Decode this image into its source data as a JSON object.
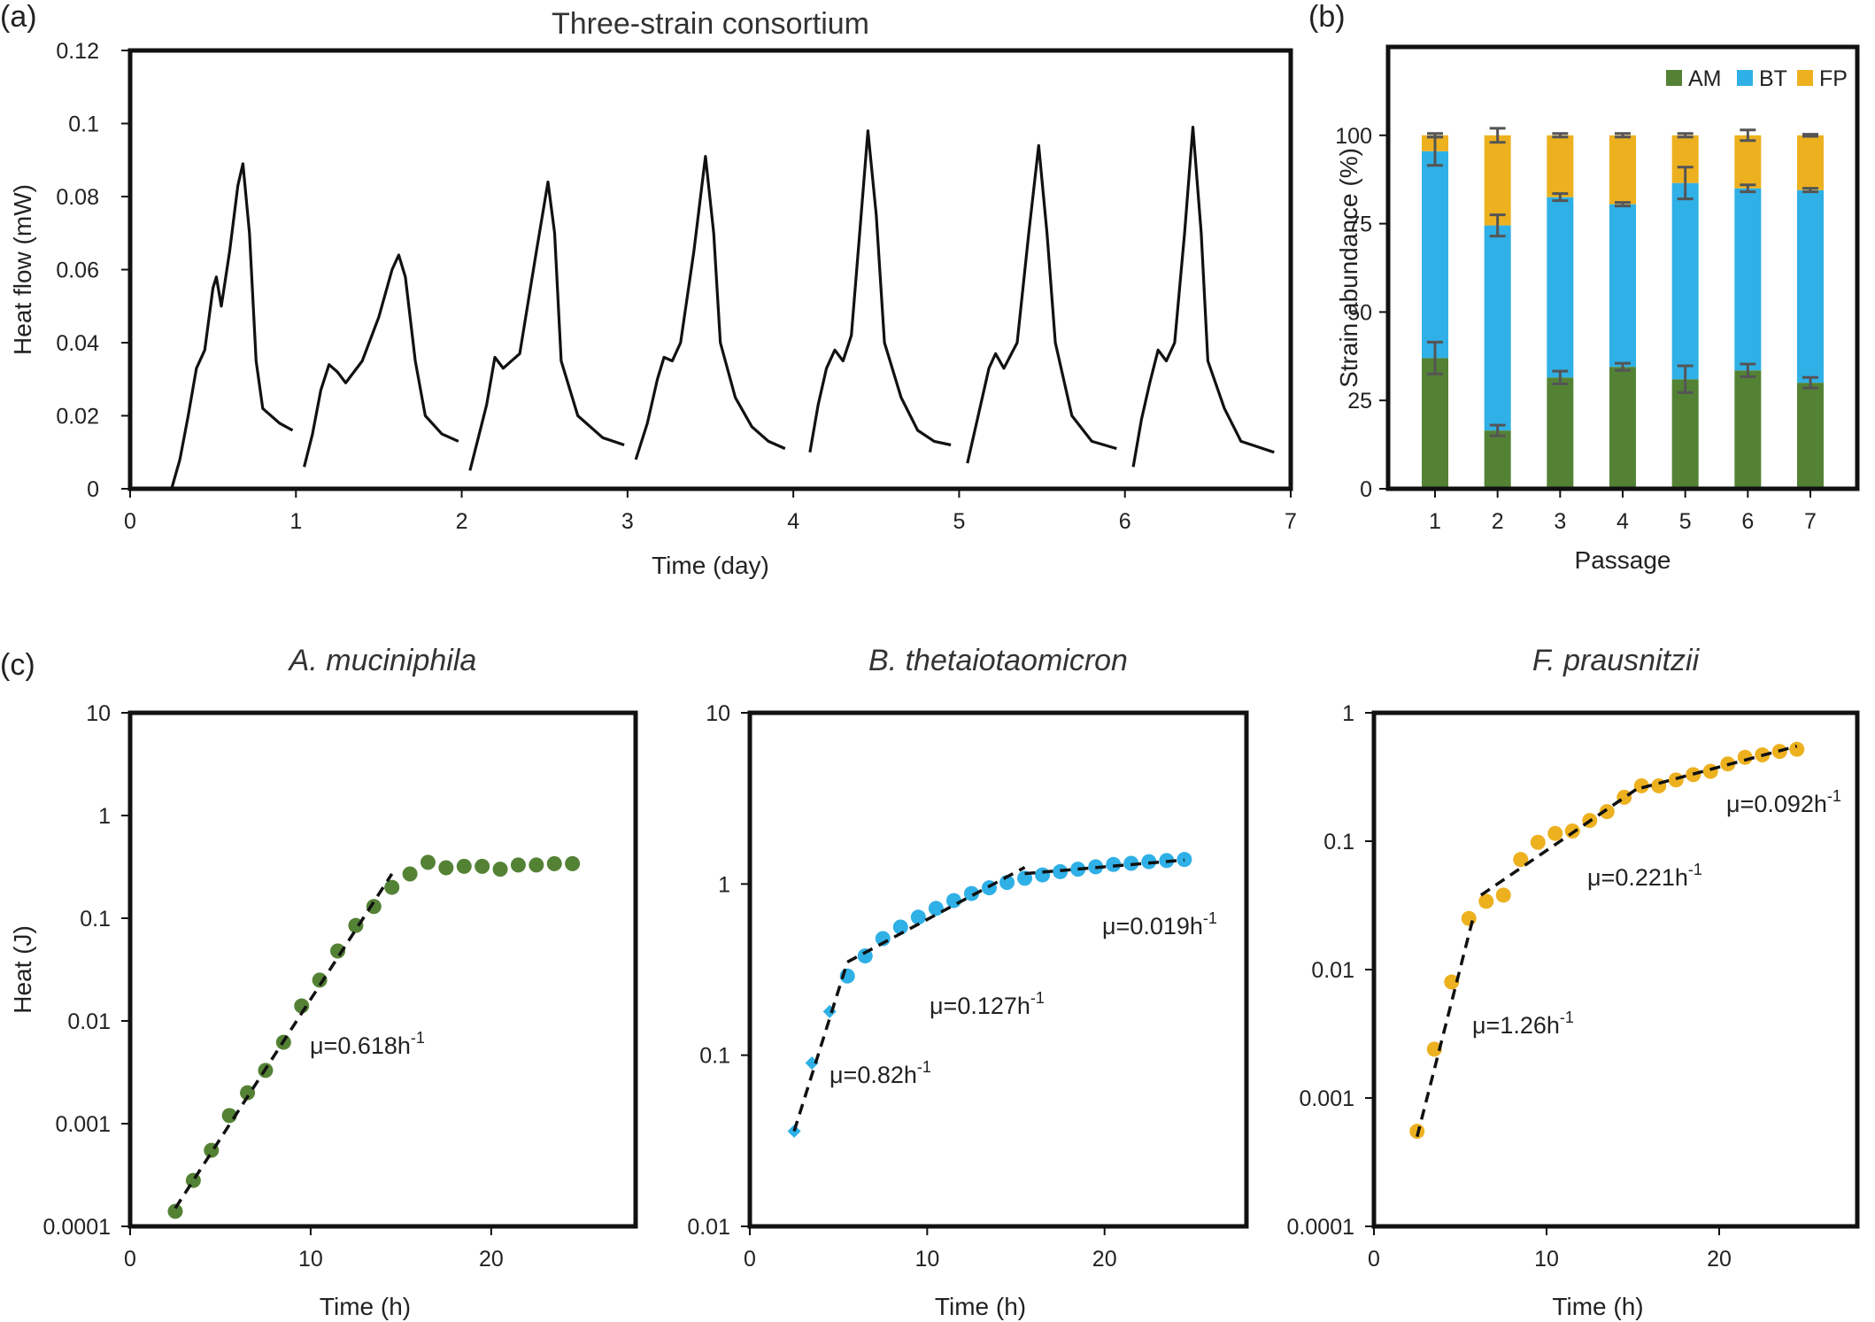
{
  "chart_data": [
    {
      "panel": "(a)",
      "type": "line",
      "title": "Three-strain consortium",
      "xlabel": "Time (day)",
      "ylabel": "Heat flow (mW)",
      "xlim": [
        0,
        7
      ],
      "ylim": [
        0,
        0.12
      ],
      "xticks": [
        "0",
        "1",
        "2",
        "3",
        "4",
        "5",
        "6",
        "7"
      ],
      "yticks": [
        "0",
        "0.02",
        "0.04",
        "0.06",
        "0.08",
        "0.1",
        "0.12"
      ],
      "series": [
        {
          "values": [
            [
              0.25,
              0
            ],
            [
              0.3,
              0.008
            ],
            [
              0.35,
              0.02
            ],
            [
              0.4,
              0.033
            ],
            [
              0.45,
              0.038
            ],
            [
              0.5,
              0.055
            ],
            [
              0.52,
              0.058
            ],
            [
              0.55,
              0.05
            ],
            [
              0.6,
              0.065
            ],
            [
              0.65,
              0.083
            ],
            [
              0.68,
              0.089
            ],
            [
              0.72,
              0.07
            ],
            [
              0.76,
              0.035
            ],
            [
              0.8,
              0.022
            ],
            [
              0.9,
              0.018
            ],
            [
              0.98,
              0.016
            ]
          ]
        },
        {
          "values": [
            [
              1.05,
              0.006
            ],
            [
              1.1,
              0.015
            ],
            [
              1.15,
              0.027
            ],
            [
              1.2,
              0.034
            ],
            [
              1.25,
              0.032
            ],
            [
              1.3,
              0.029
            ],
            [
              1.4,
              0.035
            ],
            [
              1.5,
              0.047
            ],
            [
              1.58,
              0.06
            ],
            [
              1.62,
              0.064
            ],
            [
              1.66,
              0.058
            ],
            [
              1.72,
              0.035
            ],
            [
              1.78,
              0.02
            ],
            [
              1.88,
              0.015
            ],
            [
              1.98,
              0.013
            ]
          ]
        },
        {
          "values": [
            [
              2.05,
              0.005
            ],
            [
              2.1,
              0.014
            ],
            [
              2.15,
              0.023
            ],
            [
              2.2,
              0.036
            ],
            [
              2.25,
              0.033
            ],
            [
              2.3,
              0.035
            ],
            [
              2.35,
              0.037
            ],
            [
              2.45,
              0.065
            ],
            [
              2.52,
              0.084
            ],
            [
              2.56,
              0.07
            ],
            [
              2.6,
              0.035
            ],
            [
              2.7,
              0.02
            ],
            [
              2.85,
              0.014
            ],
            [
              2.98,
              0.012
            ]
          ]
        },
        {
          "values": [
            [
              3.05,
              0.008
            ],
            [
              3.12,
              0.018
            ],
            [
              3.18,
              0.03
            ],
            [
              3.22,
              0.036
            ],
            [
              3.27,
              0.035
            ],
            [
              3.32,
              0.04
            ],
            [
              3.4,
              0.065
            ],
            [
              3.47,
              0.091
            ],
            [
              3.52,
              0.07
            ],
            [
              3.56,
              0.04
            ],
            [
              3.65,
              0.025
            ],
            [
              3.75,
              0.017
            ],
            [
              3.85,
              0.013
            ],
            [
              3.95,
              0.011
            ]
          ]
        },
        {
          "values": [
            [
              4.1,
              0.01
            ],
            [
              4.15,
              0.023
            ],
            [
              4.2,
              0.033
            ],
            [
              4.25,
              0.038
            ],
            [
              4.3,
              0.035
            ],
            [
              4.35,
              0.042
            ],
            [
              4.4,
              0.07
            ],
            [
              4.45,
              0.098
            ],
            [
              4.5,
              0.075
            ],
            [
              4.55,
              0.04
            ],
            [
              4.65,
              0.025
            ],
            [
              4.75,
              0.016
            ],
            [
              4.85,
              0.013
            ],
            [
              4.95,
              0.012
            ]
          ]
        },
        {
          "values": [
            [
              5.05,
              0.007
            ],
            [
              5.12,
              0.021
            ],
            [
              5.18,
              0.033
            ],
            [
              5.22,
              0.037
            ],
            [
              5.27,
              0.033
            ],
            [
              5.35,
              0.04
            ],
            [
              5.42,
              0.07
            ],
            [
              5.48,
              0.094
            ],
            [
              5.53,
              0.07
            ],
            [
              5.58,
              0.04
            ],
            [
              5.68,
              0.02
            ],
            [
              5.8,
              0.013
            ],
            [
              5.95,
              0.011
            ]
          ]
        },
        {
          "values": [
            [
              6.05,
              0.006
            ],
            [
              6.1,
              0.019
            ],
            [
              6.15,
              0.029
            ],
            [
              6.2,
              0.038
            ],
            [
              6.25,
              0.035
            ],
            [
              6.3,
              0.04
            ],
            [
              6.36,
              0.07
            ],
            [
              6.41,
              0.099
            ],
            [
              6.46,
              0.07
            ],
            [
              6.5,
              0.035
            ],
            [
              6.6,
              0.022
            ],
            [
              6.7,
              0.013
            ],
            [
              6.9,
              0.01
            ]
          ]
        }
      ]
    },
    {
      "panel": "(b)",
      "type": "bar",
      "stacked": true,
      "xlabel": "Passage",
      "ylabel": "Strain abundance (%)",
      "ylim": [
        0,
        125
      ],
      "yticks": [
        "0",
        "25",
        "50",
        "75",
        "100"
      ],
      "categories": [
        "1",
        "2",
        "3",
        "4",
        "5",
        "6",
        "7"
      ],
      "legend": "top-right",
      "series": [
        {
          "name": "AM",
          "color": "#548235",
          "values": [
            37,
            16.5,
            31.5,
            34.5,
            31,
            33.5,
            30
          ],
          "errors": [
            4.5,
            1.5,
            1.8,
            1,
            3.8,
            1.8,
            1.5
          ]
        },
        {
          "name": "BT",
          "color": "#2FB0E6",
          "values": [
            58.5,
            58,
            51,
            46,
            55.5,
            51.5,
            54.5
          ],
          "errors": [
            4,
            3,
            1,
            0.5,
            4.5,
            1,
            0.5
          ]
        },
        {
          "name": "FP",
          "color": "#EDB120",
          "values": [
            4.5,
            25.5,
            17.5,
            19.5,
            13.5,
            15,
            15.5
          ],
          "errors": [
            0.5,
            2,
            0.5,
            0.5,
            0.5,
            1.5,
            0.3
          ]
        }
      ]
    },
    {
      "panel": "(c)",
      "type": "scatter",
      "title": "A. muciniphila",
      "xlabel": "Time (h)",
      "ylabel": "Heat (J)",
      "yscale": "log",
      "xlim": [
        0,
        28
      ],
      "ylim": [
        0.0001,
        10
      ],
      "xticks": [
        "0",
        "10",
        "20"
      ],
      "yticks": [
        "0.0001",
        "0.001",
        "0.01",
        "0.1",
        "1",
        "10"
      ],
      "color": "#548235",
      "points": [
        [
          2.5,
          0.00014
        ],
        [
          3.5,
          0.00028
        ],
        [
          4.5,
          0.00055
        ],
        [
          5.5,
          0.0012
        ],
        [
          6.5,
          0.002
        ],
        [
          7.5,
          0.0033
        ],
        [
          8.5,
          0.0062
        ],
        [
          9.5,
          0.014
        ],
        [
          10.5,
          0.025
        ],
        [
          11.5,
          0.048
        ],
        [
          12.5,
          0.085
        ],
        [
          13.5,
          0.13
        ],
        [
          14.5,
          0.2
        ],
        [
          15.5,
          0.27
        ],
        [
          16.5,
          0.35
        ],
        [
          17.5,
          0.31
        ],
        [
          18.5,
          0.32
        ],
        [
          19.5,
          0.32
        ],
        [
          20.5,
          0.3
        ],
        [
          21.5,
          0.33
        ],
        [
          22.5,
          0.33
        ],
        [
          23.5,
          0.34
        ],
        [
          24.5,
          0.34
        ]
      ],
      "fits": [
        {
          "x": [
            2.5,
            14.5
          ],
          "y": [
            0.00015,
            0.27
          ],
          "label": "μ=0.618h",
          "sup": "-1"
        }
      ]
    },
    {
      "type": "scatter",
      "title": "B. thetaiotaomicron",
      "xlabel": "Time (h)",
      "yscale": "log",
      "xlim": [
        0,
        28
      ],
      "ylim": [
        0.01,
        10
      ],
      "xticks": [
        "0",
        "10",
        "20"
      ],
      "yticks": [
        "0.01",
        "0.1",
        "1",
        "10"
      ],
      "color": "#2FB0E6",
      "diamonds": [
        [
          2.5,
          0.036
        ],
        [
          3.5,
          0.09
        ],
        [
          4.5,
          0.18
        ]
      ],
      "points": [
        [
          5.5,
          0.29
        ],
        [
          6.5,
          0.38
        ],
        [
          7.5,
          0.48
        ],
        [
          8.5,
          0.56
        ],
        [
          9.5,
          0.64
        ],
        [
          10.5,
          0.72
        ],
        [
          11.5,
          0.8
        ],
        [
          12.5,
          0.88
        ],
        [
          13.5,
          0.95
        ],
        [
          14.5,
          1.02
        ],
        [
          15.5,
          1.08
        ],
        [
          16.5,
          1.13
        ],
        [
          17.5,
          1.18
        ],
        [
          18.5,
          1.22
        ],
        [
          19.5,
          1.26
        ],
        [
          20.5,
          1.3
        ],
        [
          21.5,
          1.32
        ],
        [
          22.5,
          1.35
        ],
        [
          23.5,
          1.37
        ],
        [
          24.5,
          1.39
        ]
      ],
      "fits": [
        {
          "x": [
            2.5,
            5.5
          ],
          "y": [
            0.036,
            0.35
          ],
          "label": "μ=0.82h",
          "sup": "-1"
        },
        {
          "x": [
            5.5,
            15.5
          ],
          "y": [
            0.35,
            1.25
          ],
          "label": "μ=0.127h",
          "sup": "-1"
        },
        {
          "x": [
            15.5,
            24.5
          ],
          "y": [
            1.15,
            1.38
          ],
          "label": "μ=0.019h",
          "sup": "-1"
        }
      ]
    },
    {
      "type": "scatter",
      "title": "F. prausnitzii",
      "xlabel": "Time (h)",
      "yscale": "log",
      "xlim": [
        0,
        28
      ],
      "ylim": [
        0.0001,
        1
      ],
      "xticks": [
        "0",
        "10",
        "20"
      ],
      "yticks": [
        "0.0001",
        "0.001",
        "0.01",
        "0.1",
        "1"
      ],
      "color": "#EDB120",
      "points": [
        [
          2.5,
          0.00055
        ],
        [
          3.5,
          0.0024
        ],
        [
          4.5,
          0.008
        ],
        [
          5.5,
          0.025
        ],
        [
          6.5,
          0.034
        ],
        [
          7.5,
          0.038
        ],
        [
          8.5,
          0.072
        ],
        [
          9.5,
          0.098
        ],
        [
          10.5,
          0.115
        ],
        [
          11.5,
          0.12
        ],
        [
          12.5,
          0.145
        ],
        [
          13.5,
          0.17
        ],
        [
          14.5,
          0.22
        ],
        [
          15.5,
          0.27
        ],
        [
          16.5,
          0.27
        ],
        [
          17.5,
          0.3
        ],
        [
          18.5,
          0.33
        ],
        [
          19.5,
          0.35
        ],
        [
          20.5,
          0.4
        ],
        [
          21.5,
          0.45
        ],
        [
          22.5,
          0.47
        ],
        [
          23.5,
          0.5
        ],
        [
          24.5,
          0.52
        ]
      ],
      "fits": [
        {
          "x": [
            2.5,
            5.8
          ],
          "y": [
            0.0005,
            0.027
          ],
          "label": "μ=1.26h",
          "sup": "-1"
        },
        {
          "x": [
            6.2,
            15.5
          ],
          "y": [
            0.038,
            0.27
          ],
          "label": "μ=0.221h",
          "sup": "-1"
        },
        {
          "x": [
            15.5,
            24.5
          ],
          "y": [
            0.26,
            0.55
          ],
          "label": "μ=0.092h",
          "sup": "-1"
        }
      ]
    }
  ]
}
